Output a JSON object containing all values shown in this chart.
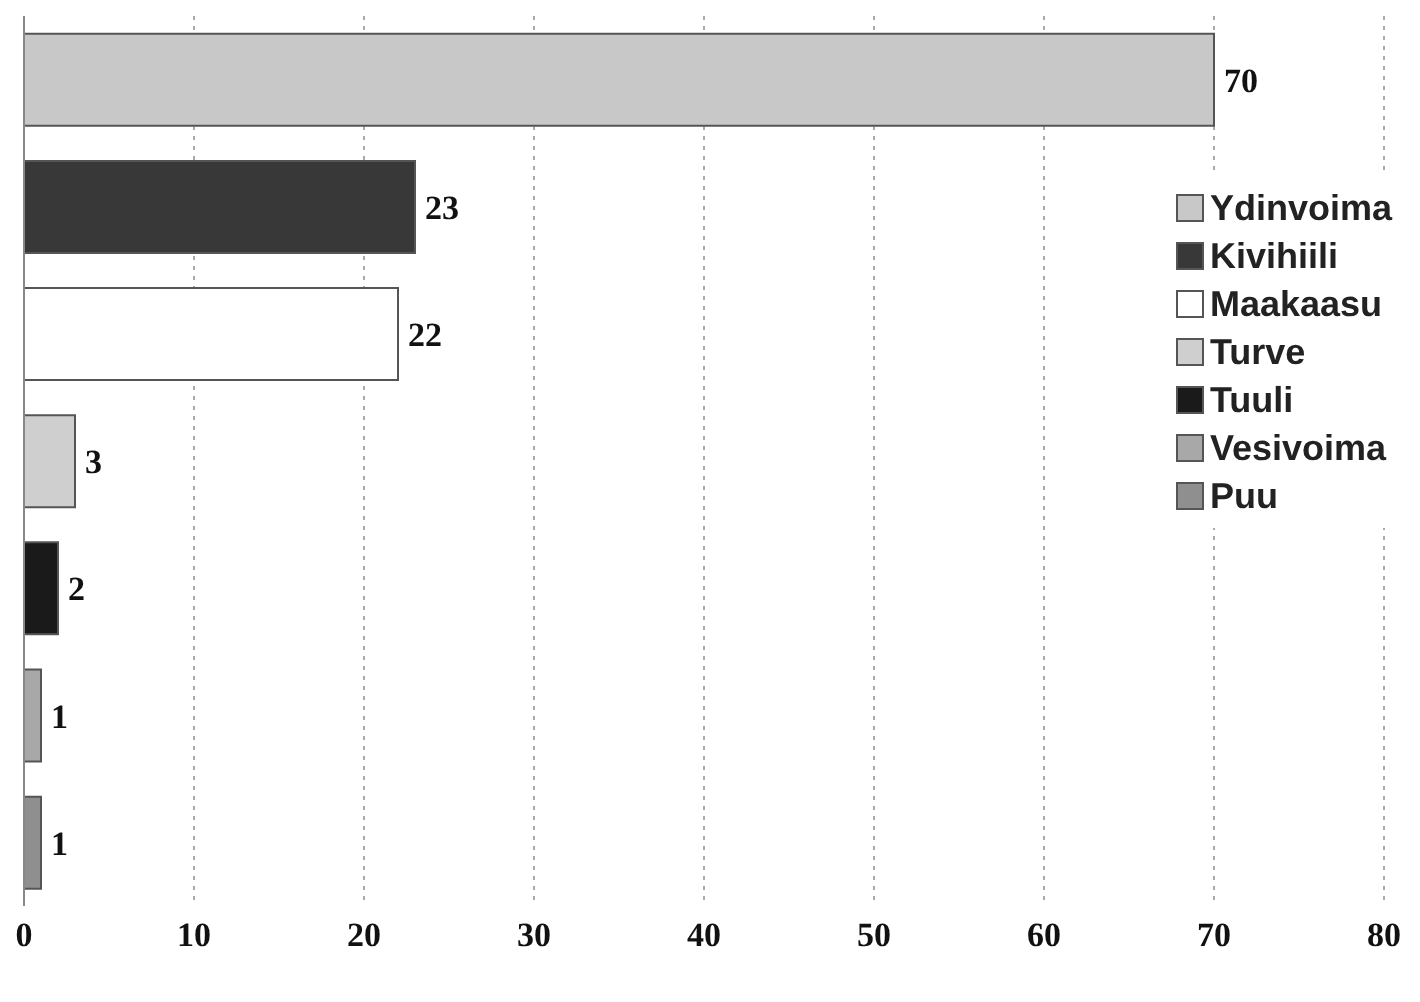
{
  "chart_data": {
    "type": "bar",
    "orientation": "horizontal",
    "stacked": true,
    "categories": [
      null,
      null,
      null,
      null,
      null,
      null,
      null
    ],
    "series": [
      {
        "name": "Ydinvoima",
        "color": "#c8c8c8",
        "values": [
          70,
          null,
          null,
          null,
          null,
          null,
          null
        ]
      },
      {
        "name": "Kivihiili",
        "color": "#383838",
        "values": [
          null,
          23,
          null,
          null,
          null,
          null,
          null
        ]
      },
      {
        "name": "Maakaasu",
        "color": "#ffffff",
        "values": [
          null,
          null,
          22,
          null,
          null,
          null,
          null
        ]
      },
      {
        "name": "Turve",
        "color": "#cfcfcf",
        "values": [
          null,
          null,
          null,
          3,
          null,
          null,
          null
        ]
      },
      {
        "name": "Tuuli",
        "color": "#1a1a1a",
        "values": [
          null,
          null,
          null,
          null,
          2,
          null,
          null
        ]
      },
      {
        "name": "Vesivoima",
        "color": "#a8a8a8",
        "values": [
          null,
          null,
          null,
          null,
          null,
          1,
          null
        ]
      },
      {
        "name": "Puu",
        "color": "#8f8f8f",
        "values": [
          null,
          null,
          null,
          null,
          null,
          null,
          1
        ]
      }
    ],
    "xlim": [
      0,
      80
    ],
    "xticks": [
      0,
      10,
      20,
      30,
      40,
      50,
      60,
      70,
      80
    ],
    "grid": "x",
    "legend": "right",
    "data_labels": true,
    "tick_labels": "x"
  }
}
